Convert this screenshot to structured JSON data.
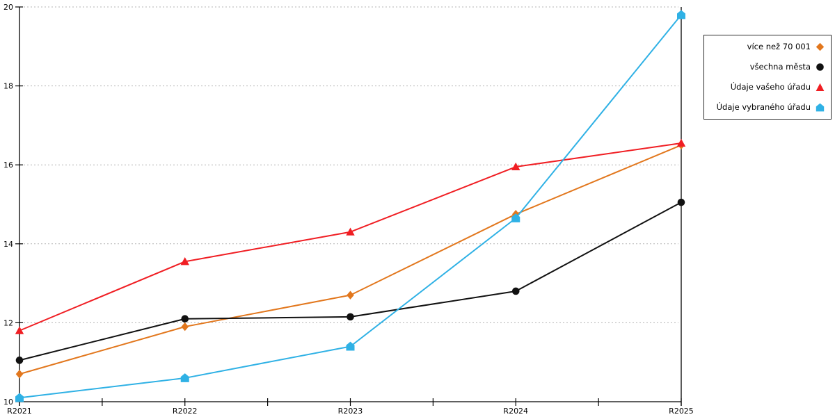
{
  "chart_data": {
    "type": "line",
    "title": "",
    "xlabel": "",
    "ylabel": "",
    "x_categories": [
      "R2021",
      "R2022",
      "R2023",
      "R2024",
      "R2025"
    ],
    "y_ticks": [
      10,
      12,
      14,
      16,
      18,
      20
    ],
    "ylim": [
      10,
      20
    ],
    "grid": "horizontal dotted gridlines at each y tick, minor x ticks at interval midpoints",
    "legend_position": "outside top-right, boxed, markers right of right-aligned labels",
    "series": [
      {
        "name": "více než 70 001",
        "marker": "diamond",
        "color": "#e2771d",
        "values": [
          10.7,
          11.9,
          12.7,
          14.75,
          16.5
        ]
      },
      {
        "name": "všechna města",
        "marker": "circle",
        "color": "#111111",
        "values": [
          11.05,
          12.1,
          12.15,
          12.8,
          15.05
        ]
      },
      {
        "name": "Údaje vašeho úřadu",
        "marker": "triangle",
        "color": "#f01e23",
        "values": [
          11.8,
          13.55,
          14.3,
          15.95,
          16.55
        ]
      },
      {
        "name": "Údaje vybraného úřadu",
        "marker": "pentagon",
        "color": "#2fb1e5",
        "values": [
          10.1,
          10.6,
          11.4,
          14.65,
          19.8
        ]
      }
    ]
  },
  "colors": {
    "background": "#ffffff",
    "axis": "#000000",
    "grid": "#b3b3b3",
    "tick_label": "#000000"
  }
}
